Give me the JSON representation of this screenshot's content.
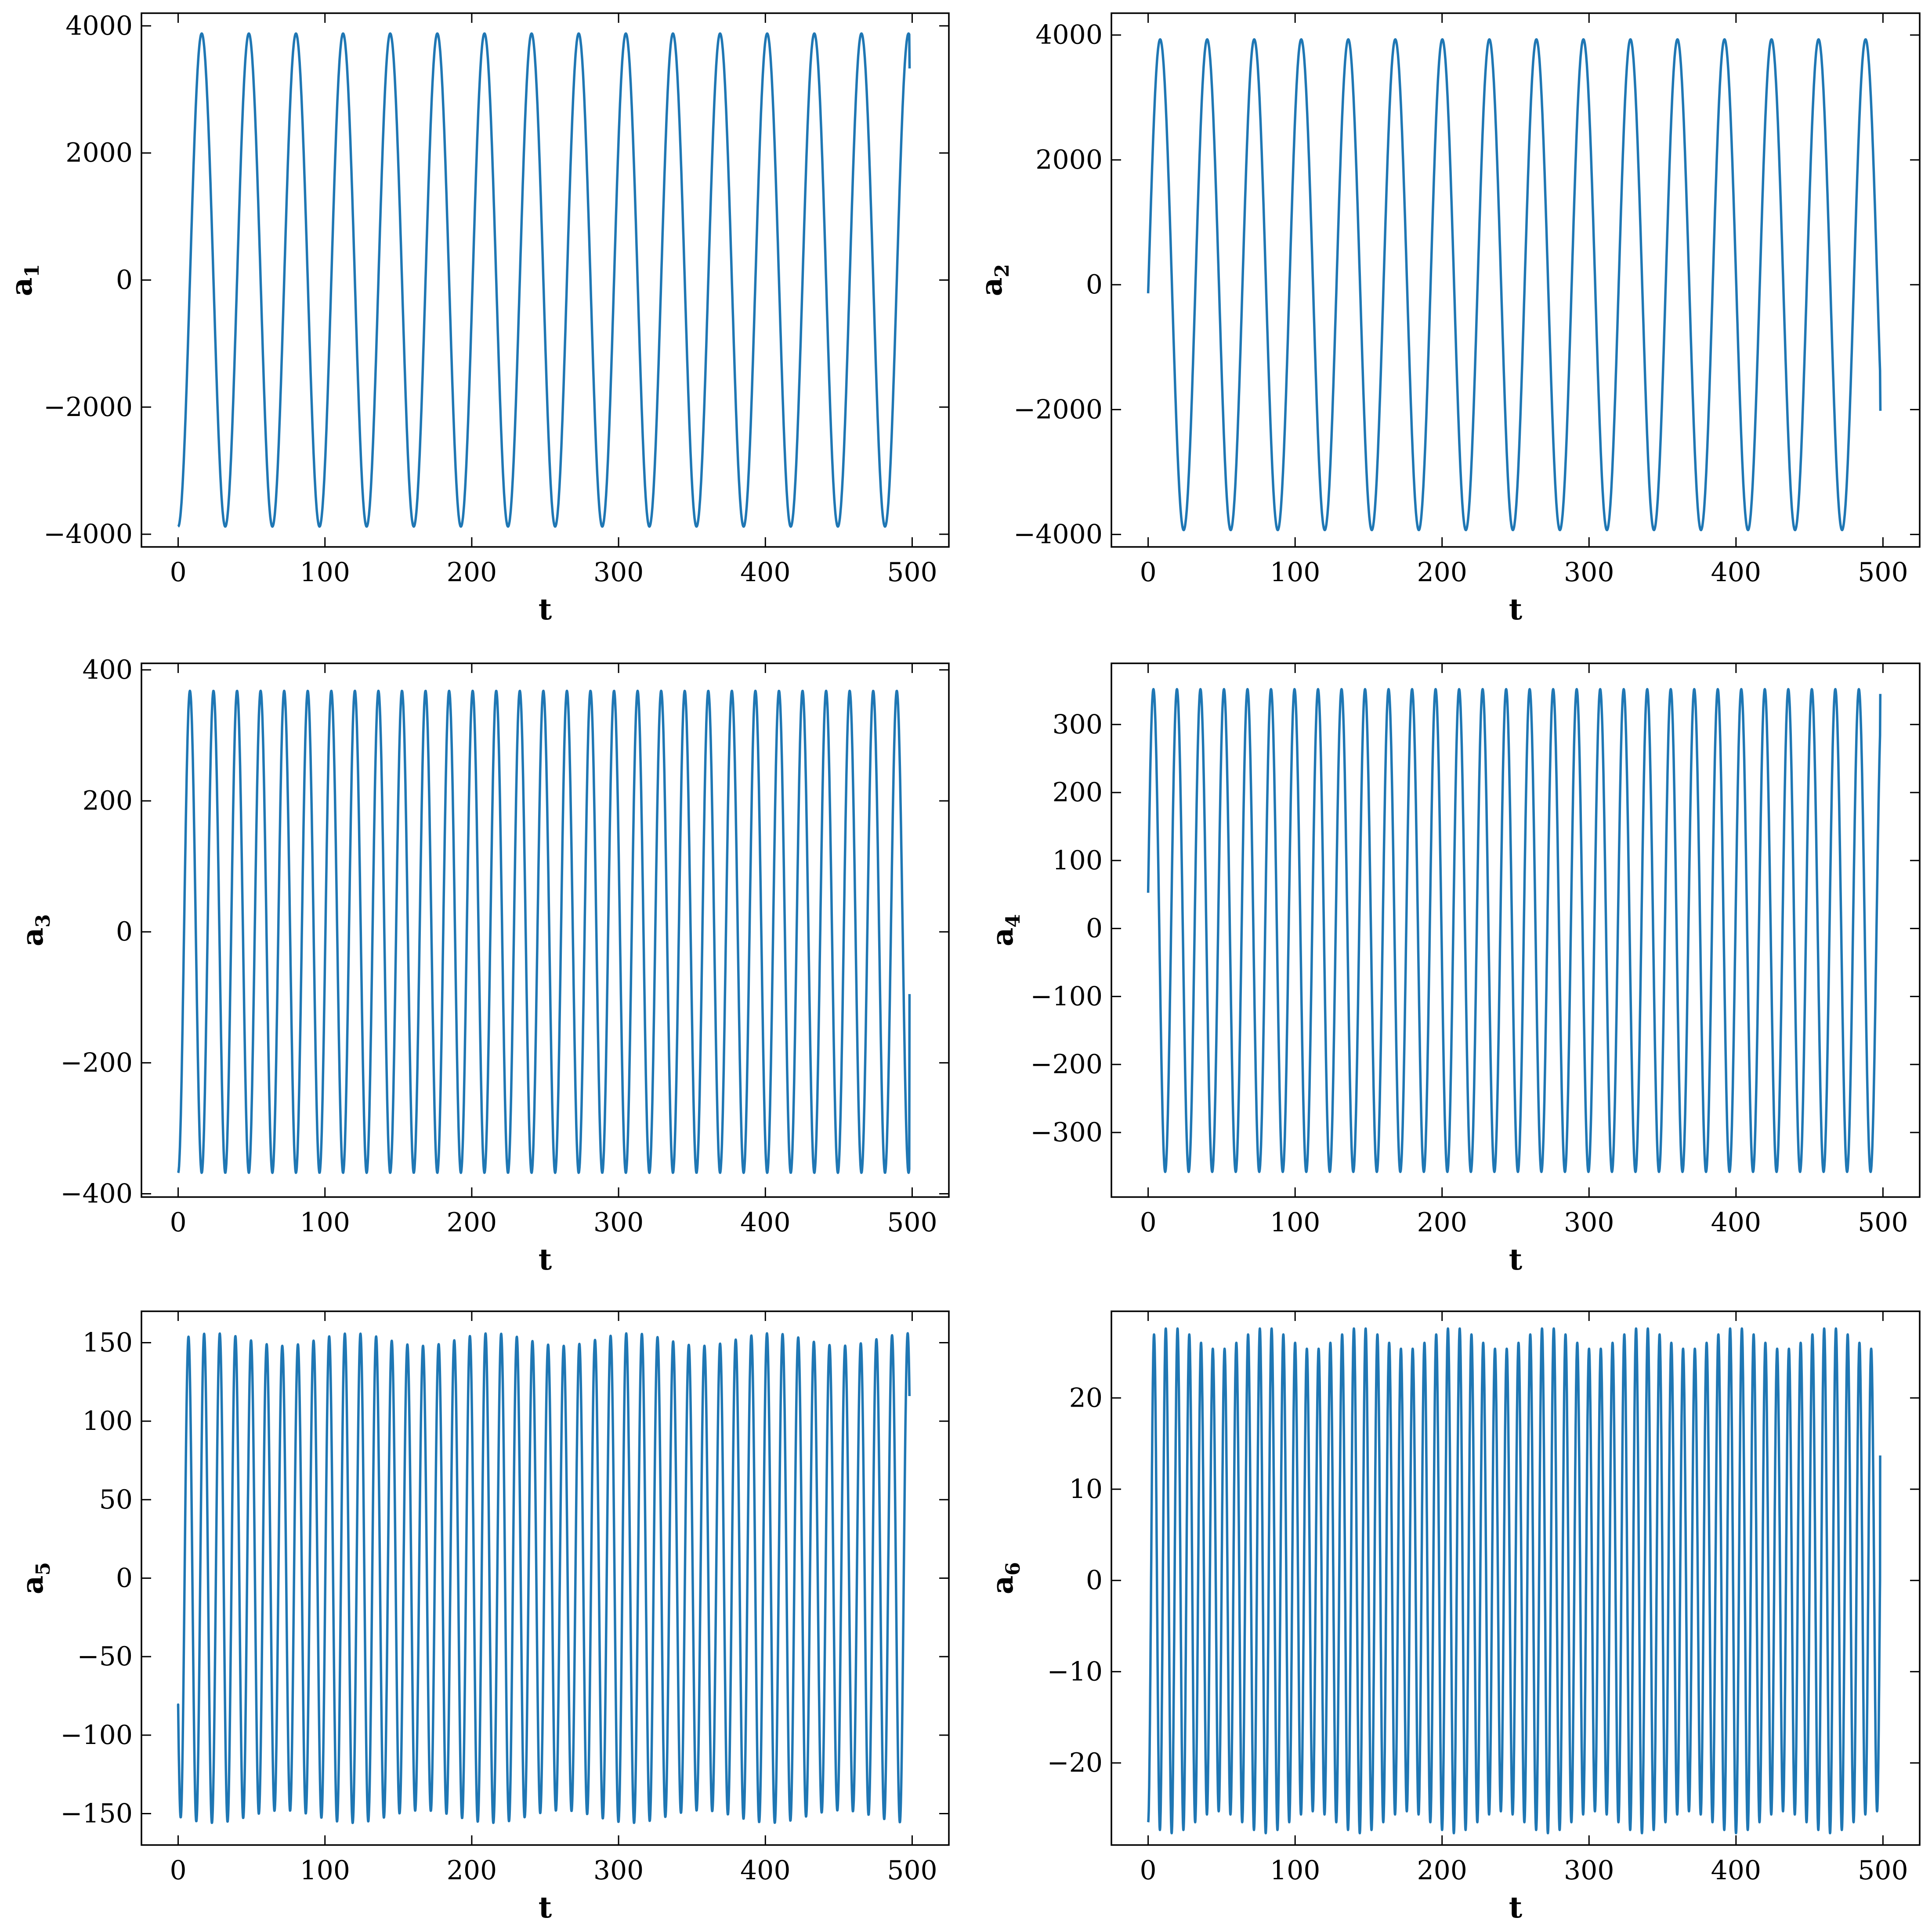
{
  "figure": {
    "panel_order": [
      "a1",
      "a2",
      "a3",
      "a4",
      "a5",
      "a6"
    ],
    "line_color": "#1f77b4"
  },
  "chart_data": [
    {
      "id": "a1",
      "type": "line",
      "xlabel": "t",
      "ylabel_base": "a",
      "ylabel_sub": "1",
      "xlim": [
        -25,
        525
      ],
      "ylim": [
        -4200,
        4200
      ],
      "xticks": [
        0,
        100,
        200,
        300,
        400,
        500
      ],
      "yticks": [
        -4000,
        -2000,
        0,
        2000,
        4000
      ],
      "series": [
        {
          "amplitude": 3880,
          "period": 32.1,
          "phase_deg": 270,
          "t_start": 0,
          "t_end": 498,
          "t_step": 0.25,
          "end_value": 3330
        }
      ]
    },
    {
      "id": "a2",
      "type": "line",
      "xlabel": "t",
      "ylabel_base": "a",
      "ylabel_sub": "2",
      "xlim": [
        -25,
        525
      ],
      "ylim": [
        -4200,
        4350
      ],
      "xticks": [
        0,
        100,
        200,
        300,
        400,
        500
      ],
      "yticks": [
        -4000,
        -2000,
        0,
        2000,
        4000
      ],
      "series": [
        {
          "amplitude": 3930,
          "period": 32.0,
          "phase_deg": -2,
          "t_start": 0,
          "t_end": 498,
          "t_step": 0.25,
          "end_value": -2020
        }
      ]
    },
    {
      "id": "a3",
      "type": "line",
      "xlabel": "t",
      "ylabel_base": "a",
      "ylabel_sub": "3",
      "xlim": [
        -25,
        525
      ],
      "ylim": [
        -405,
        410
      ],
      "xticks": [
        0,
        100,
        200,
        300,
        400,
        500
      ],
      "yticks": [
        -400,
        -200,
        0,
        200,
        400
      ],
      "series": [
        {
          "amplitude": 368,
          "period": 16.05,
          "phase_deg": 270,
          "t_start": 0,
          "t_end": 498,
          "t_step": 0.2,
          "end_value": -95
        }
      ]
    },
    {
      "id": "a4",
      "type": "line",
      "xlabel": "t",
      "ylabel_base": "a",
      "ylabel_sub": "4",
      "xlim": [
        -25,
        525
      ],
      "ylim": [
        -395,
        390
      ],
      "xticks": [
        0,
        100,
        200,
        300,
        400,
        500
      ],
      "yticks": [
        -300,
        -200,
        -100,
        0,
        100,
        200,
        300
      ],
      "series": [
        {
          "amplitude": 355,
          "period": 16.0,
          "phase_deg": 9,
          "offset": -3,
          "t_start": 0,
          "t_end": 498,
          "t_step": 0.2,
          "end_value": 345
        }
      ]
    },
    {
      "id": "a5",
      "type": "line",
      "xlabel": "t",
      "ylabel_base": "a",
      "ylabel_sub": "5",
      "xlim": [
        -25,
        525
      ],
      "ylim": [
        -170,
        170
      ],
      "xticks": [
        0,
        100,
        200,
        300,
        400,
        500
      ],
      "yticks": [
        -150,
        -100,
        -50,
        0,
        50,
        100,
        150
      ],
      "series": [
        {
          "amplitude": 152,
          "period": 10.65,
          "phase_deg": 212,
          "modulation": 4,
          "modulation_period": 95,
          "t_start": 0,
          "t_end": 498,
          "t_step": 0.15,
          "start_value": -82,
          "end_value": 116
        }
      ]
    },
    {
      "id": "a6",
      "type": "line",
      "xlabel": "t",
      "ylabel_base": "a",
      "ylabel_sub": "6",
      "xlim": [
        -25,
        525
      ],
      "ylim": [
        -29,
        29.5
      ],
      "xticks": [
        0,
        100,
        200,
        300,
        400,
        500
      ],
      "yticks": [
        -20,
        -10,
        0,
        10,
        20
      ],
      "series": [
        {
          "amplitude": 26.5,
          "period": 8.0,
          "phase_deg": 270,
          "modulation": 1.2,
          "modulation_period": 64,
          "t_start": 0,
          "t_end": 498,
          "t_step": 0.1,
          "end_value": 13.7
        }
      ]
    }
  ]
}
